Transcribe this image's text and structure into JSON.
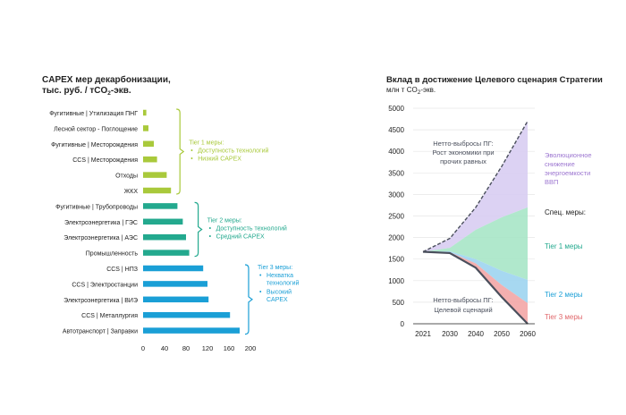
{
  "colors": {
    "tier1": "#a9c93b",
    "tier2": "#23a98e",
    "tier3": "#1a9fd6",
    "purple": "#9d77d1",
    "purple_fill": "#d8cdf2",
    "green_fill": "#a7e6c6",
    "blue_fill": "#9dd4f0",
    "red_fill": "#f3a6a6",
    "red_text": "#e0676b",
    "netto_line": "#4a4f5c"
  },
  "chart_data": [
    {
      "type": "bar",
      "orientation": "horizontal",
      "title_line1": "CAPEX мер декарбонизации,",
      "title_line2_pre": "тыс. руб. / тCO",
      "title_line2_sub": "2",
      "title_line2_post": "-экв.",
      "categories": [
        "Фугитивные | Утилизация ПНГ",
        "Лесной сектор - Поглощение",
        "Фугитивные | Месторождения",
        "CCS | Месторождения",
        "Отходы",
        "ЖКХ",
        "Фугитивные | Трубопроводы",
        "Электроэнергетика | ГЭС",
        "Электроэнергетика | АЭС",
        "Промышленность",
        "CCS | НПЗ",
        "CCS | Электростанции",
        "Электроэнергетика | ВИЭ",
        "CCS | Металлургия",
        "Автотранспорт | Заправки"
      ],
      "values": [
        6,
        10,
        20,
        26,
        44,
        52,
        64,
        74,
        80,
        86,
        112,
        120,
        122,
        162,
        180
      ],
      "tiers": [
        1,
        1,
        1,
        1,
        1,
        1,
        2,
        2,
        2,
        2,
        3,
        3,
        3,
        3,
        3
      ],
      "xlim": [
        0,
        200
      ],
      "xticks": [
        "0",
        "40",
        "80",
        "120",
        "160",
        "200"
      ],
      "tier_groups": [
        {
          "heading": "Tier 1 меры:",
          "bullets": [
            "Доступность технологий",
            "Низкий CAPEX"
          ]
        },
        {
          "heading": "Tier 2 меры:",
          "bullets": [
            "Доступность технологий",
            "Средний CAPEX"
          ]
        },
        {
          "heading": "Tier 3 меры:",
          "bullets": [
            "Нехватка технологий",
            "Высокий CAPEX"
          ]
        }
      ]
    },
    {
      "type": "area",
      "title": "Вклад в достижение Целевого сценария Стратегии",
      "subtitle_pre": "млн т CO",
      "subtitle_sub": "2",
      "subtitle_post": "-экв.",
      "x": [
        2021,
        2030,
        2040,
        2050,
        2060
      ],
      "xticks": [
        "2021",
        "2030",
        "2040",
        "2050",
        "2060"
      ],
      "ylim": [
        0,
        5000
      ],
      "yticks": [
        "0",
        "500",
        "1000",
        "1500",
        "2000",
        "2500",
        "3000",
        "3500",
        "4000",
        "4500",
        "5000"
      ],
      "series": [
        {
          "name": "Нетто-выбросы ПГ: Рост экономики при прочих равных",
          "values": [
            1670,
            1980,
            2700,
            3650,
            4700
          ]
        },
        {
          "name": "Эволюционное снижение энергоемкости ВВП",
          "values": [
            1670,
            1760,
            2180,
            2470,
            2700
          ]
        },
        {
          "name": "Tier 1 меры",
          "values": [
            1670,
            1680,
            1500,
            1230,
            1020
          ]
        },
        {
          "name": "Tier 2 меры",
          "values": [
            1670,
            1660,
            1400,
            900,
            480
          ]
        },
        {
          "name": "Нетто-выбросы ПГ: Целевой сценарий",
          "values": [
            1670,
            1640,
            1300,
            620,
            0
          ]
        }
      ],
      "labels": {
        "netto_growth": [
          "Нетто-выбросы ПГ:",
          "Рост экономики при",
          "прочих равных"
        ],
        "evolution": [
          "Эволюционное",
          "снижение",
          "энергоемкости",
          "ВВП"
        ],
        "spec": "Спец. меры:",
        "tier1": "Tier 1 меры",
        "tier2": "Tier 2 меры",
        "tier3": "Tier 3 меры",
        "netto_target": [
          "Нетто-выбросы ПГ:",
          "Целевой сценарий"
        ]
      }
    }
  ]
}
